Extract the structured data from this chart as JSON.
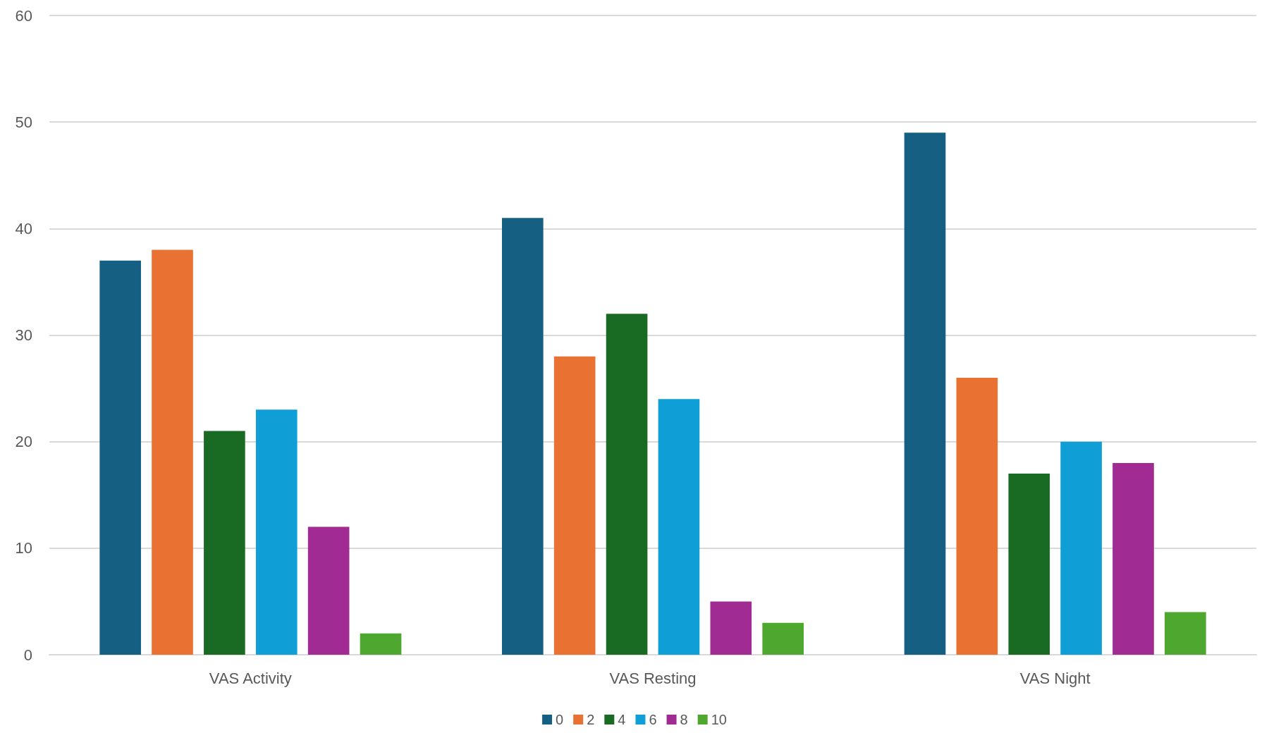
{
  "chart_data": {
    "type": "bar",
    "categories": [
      "VAS Activity",
      "VAS Resting",
      "VAS Night"
    ],
    "series": [
      {
        "name": "0",
        "color": "#156082",
        "values": [
          37,
          41,
          49
        ]
      },
      {
        "name": "2",
        "color": "#e97132",
        "values": [
          38,
          28,
          26
        ]
      },
      {
        "name": "4",
        "color": "#196b24",
        "values": [
          21,
          32,
          17
        ]
      },
      {
        "name": "6",
        "color": "#0f9ed5",
        "values": [
          23,
          24,
          20
        ]
      },
      {
        "name": "8",
        "color": "#a02b93",
        "values": [
          12,
          5,
          18
        ]
      },
      {
        "name": "10",
        "color": "#4ea72e",
        "values": [
          2,
          3,
          4
        ]
      }
    ],
    "ylim": [
      0,
      60
    ],
    "yticks": [
      0,
      10,
      20,
      30,
      40,
      50,
      60
    ],
    "grid": "y",
    "legend": "bottom"
  }
}
